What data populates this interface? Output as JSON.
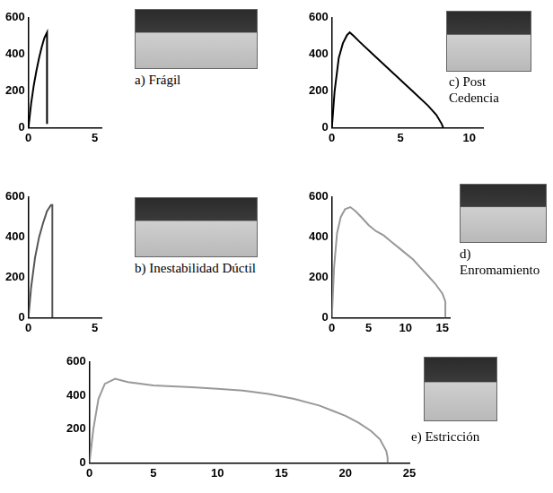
{
  "chart_data": [
    {
      "type": "line",
      "title": "a) Frágil",
      "color": "#000000",
      "x": [
        0,
        0.2,
        0.4,
        0.6,
        0.8,
        1.0,
        1.2,
        1.4,
        1.4
      ],
      "values": [
        0,
        130,
        230,
        310,
        380,
        440,
        490,
        520,
        20
      ],
      "xlim": [
        0,
        5.5
      ],
      "xticks": [
        0,
        5
      ],
      "ylim": [
        0,
        600
      ],
      "yticks": [
        0,
        200,
        400,
        600
      ],
      "grid": false
    },
    {
      "type": "line",
      "title": "b) Inestabilidad Dúctil",
      "color": "#555555",
      "x": [
        0,
        0.2,
        0.5,
        0.8,
        1.1,
        1.4,
        1.7,
        1.8,
        1.8
      ],
      "values": [
        0,
        150,
        300,
        400,
        470,
        530,
        560,
        560,
        0
      ],
      "xlim": [
        0,
        5.5
      ],
      "xticks": [
        0,
        5
      ],
      "ylim": [
        0,
        600
      ],
      "yticks": [
        0,
        200,
        400,
        600
      ],
      "grid": false
    },
    {
      "type": "line",
      "title": "c) Post Cedencia",
      "color": "#000000",
      "x": [
        0,
        0.2,
        0.5,
        0.8,
        1.1,
        1.3,
        1.6,
        2,
        3,
        4,
        5,
        6,
        7,
        7.6,
        8.0,
        8.1
      ],
      "values": [
        0,
        200,
        380,
        460,
        505,
        520,
        500,
        470,
        400,
        330,
        260,
        190,
        120,
        70,
        20,
        0
      ],
      "xlim": [
        0,
        11
      ],
      "xticks": [
        0,
        5,
        10
      ],
      "ylim": [
        0,
        600
      ],
      "yticks": [
        0,
        200,
        400,
        600
      ],
      "grid": false
    },
    {
      "type": "line",
      "title": "d) Enromamiento",
      "color": "#999999",
      "x": [
        0,
        0.3,
        0.7,
        1.2,
        1.8,
        2.5,
        3.2,
        4,
        5,
        6,
        7,
        8,
        9,
        10,
        11,
        12,
        13,
        14,
        15,
        15.4,
        15.4
      ],
      "values": [
        0,
        250,
        420,
        500,
        540,
        550,
        530,
        500,
        460,
        430,
        410,
        380,
        350,
        320,
        290,
        250,
        210,
        170,
        120,
        80,
        0
      ],
      "xlim": [
        0,
        16
      ],
      "xticks": [
        0,
        5,
        10,
        15
      ],
      "ylim": [
        0,
        600
      ],
      "yticks": [
        0,
        200,
        400,
        600
      ],
      "grid": false
    },
    {
      "type": "line",
      "title": "e) Estricción",
      "color": "#999999",
      "x": [
        0,
        0.3,
        0.7,
        1.2,
        2,
        3,
        5,
        8,
        10,
        12,
        14,
        16,
        18,
        19,
        20,
        21,
        22,
        22.7,
        23.2,
        23.3,
        23.3
      ],
      "values": [
        0,
        200,
        380,
        470,
        500,
        480,
        460,
        450,
        440,
        430,
        410,
        380,
        340,
        310,
        280,
        240,
        190,
        140,
        70,
        30,
        0
      ],
      "xlim": [
        0,
        25
      ],
      "xticks": [
        0,
        5,
        10,
        15,
        20,
        25
      ],
      "ylim": [
        0,
        600
      ],
      "yticks": [
        0,
        200,
        400,
        600
      ],
      "grid": false
    }
  ]
}
